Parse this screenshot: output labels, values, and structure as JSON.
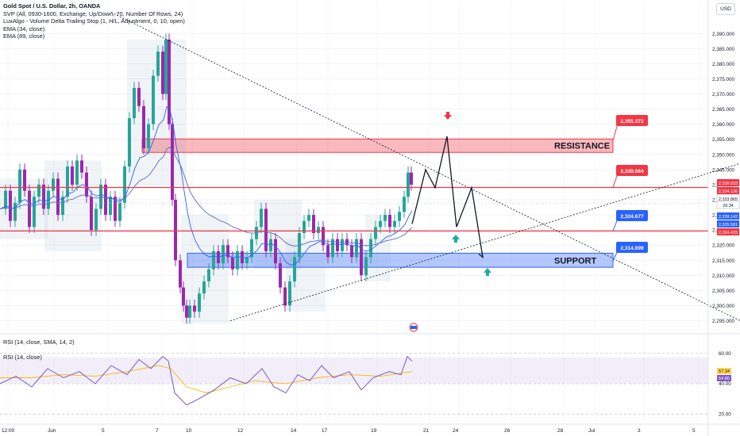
{
  "header": {
    "title": "Gold Spot / U.S. Dollar, 2h, OANDA",
    "indicators": [
      "SVP (All, 0930-1600, Exchange, Up/Down, 70, Number Of Rows, 24)",
      "LuxAlgo - Volume Delta Trailing Stop (1, H/L, Adjustment, 0, 10, open)",
      "EMA (34, close)",
      "EMA (89, close)"
    ],
    "currency": "USD"
  },
  "rsi_panel": {
    "legend_1": "RSI (14, close, SMA, 14, 2)",
    "legend_2": "RSI (14, close)",
    "axis_labels": [
      "60.00",
      "40.00",
      "20.00"
    ],
    "value_1": "57.34",
    "value_2": "54.86"
  },
  "annotations": {
    "resistance_label": "RESISTANCE",
    "support_label": "SUPPORT",
    "price_callouts": [
      "2,355.372",
      "2,339.064",
      "2,324.677",
      "2,314.699"
    ]
  },
  "price_axis_tags": [
    {
      "text": "2,338.933",
      "color": "#f23645"
    },
    {
      "text": "2,334.136",
      "color": "#f23645"
    },
    {
      "text": "2,333.865",
      "color": "#ffffff"
    },
    {
      "text": "26:34",
      "color": "#ffffff"
    },
    {
      "text": "2,328.142",
      "color": "#2962ff"
    },
    {
      "text": "2,325.581",
      "color": "#2962ff"
    },
    {
      "text": "2,324.415",
      "color": "#f23645"
    }
  ],
  "colors": {
    "resistance": "#f23645",
    "support": "#2962ff",
    "up_candle": "#26a69a",
    "down_candle": "#9c27b0",
    "ema_34": "#2962ff",
    "rsi_line": "#7e57c2",
    "rsi_ma": "#ffb300"
  },
  "chart_data": {
    "type": "candlestick",
    "symbol": "Gold Spot / U.S. Dollar",
    "interval": "2h",
    "y_ticks": [
      2390,
      2385,
      2380,
      2375,
      2370,
      2365,
      2360,
      2355,
      2350,
      2345,
      2340,
      2335,
      2330,
      2325,
      2320,
      2315,
      2310,
      2305,
      2300,
      2295
    ],
    "y_tick_labels": [
      "2,390.000",
      "2,385.000",
      "2,380.000",
      "2,375.000",
      "2,370.000",
      "2,365.000",
      "2,360.000",
      "2,355.000",
      "2,350.000",
      "2,345.000",
      "2,340.000",
      "2,335.000",
      "2,330.000",
      "2,325.000",
      "2,320.000",
      "2,315.000",
      "2,310.000",
      "2,305.000",
      "2,300.000",
      "2,295.000"
    ],
    "ylim": [
      2292,
      2394
    ],
    "x_tick_labels": [
      "12:00",
      "Jun",
      "5",
      "7",
      "10",
      "12",
      "14",
      "17",
      "19",
      "21",
      "24",
      "26",
      "28",
      "Jul",
      "3",
      "5"
    ],
    "price_path": [
      [
        0,
        2332
      ],
      [
        8,
        2338
      ],
      [
        14,
        2328
      ],
      [
        20,
        2334
      ],
      [
        26,
        2345
      ],
      [
        32,
        2338
      ],
      [
        38,
        2326
      ],
      [
        44,
        2336
      ],
      [
        50,
        2340
      ],
      [
        56,
        2332
      ],
      [
        62,
        2338
      ],
      [
        68,
        2342
      ],
      [
        74,
        2330
      ],
      [
        80,
        2336
      ],
      [
        86,
        2346
      ],
      [
        92,
        2340
      ],
      [
        98,
        2348
      ],
      [
        104,
        2344
      ],
      [
        110,
        2336
      ],
      [
        116,
        2325
      ],
      [
        122,
        2332
      ],
      [
        128,
        2340
      ],
      [
        134,
        2330
      ],
      [
        140,
        2336
      ],
      [
        146,
        2328
      ],
      [
        152,
        2334
      ],
      [
        158,
        2346
      ],
      [
        164,
        2362
      ],
      [
        170,
        2372
      ],
      [
        176,
        2366
      ],
      [
        182,
        2352
      ],
      [
        188,
        2360
      ],
      [
        194,
        2376
      ],
      [
        200,
        2384
      ],
      [
        206,
        2370
      ],
      [
        210,
        2388
      ],
      [
        214,
        2360
      ],
      [
        218,
        2335
      ],
      [
        222,
        2315
      ],
      [
        228,
        2306
      ],
      [
        232,
        2300
      ],
      [
        236,
        2296
      ],
      [
        240,
        2300
      ],
      [
        246,
        2298
      ],
      [
        252,
        2304
      ],
      [
        258,
        2308
      ],
      [
        264,
        2312
      ],
      [
        270,
        2318
      ],
      [
        276,
        2314
      ],
      [
        282,
        2320
      ],
      [
        288,
        2316
      ],
      [
        294,
        2312
      ],
      [
        300,
        2318
      ],
      [
        306,
        2314
      ],
      [
        312,
        2316
      ],
      [
        318,
        2322
      ],
      [
        324,
        2326
      ],
      [
        330,
        2332
      ],
      [
        336,
        2318
      ],
      [
        342,
        2322
      ],
      [
        348,
        2314
      ],
      [
        354,
        2306
      ],
      [
        360,
        2300
      ],
      [
        366,
        2308
      ],
      [
        372,
        2316
      ],
      [
        378,
        2324
      ],
      [
        384,
        2328
      ],
      [
        390,
        2330
      ],
      [
        396,
        2324
      ],
      [
        402,
        2326
      ],
      [
        408,
        2320
      ],
      [
        414,
        2316
      ],
      [
        420,
        2322
      ],
      [
        426,
        2318
      ],
      [
        432,
        2322
      ],
      [
        438,
        2320
      ],
      [
        444,
        2316
      ],
      [
        450,
        2322
      ],
      [
        456,
        2310
      ],
      [
        462,
        2316
      ],
      [
        468,
        2322
      ],
      [
        474,
        2326
      ],
      [
        480,
        2328
      ],
      [
        486,
        2330
      ],
      [
        492,
        2326
      ],
      [
        498,
        2328
      ],
      [
        504,
        2331
      ],
      [
        510,
        2336
      ],
      [
        515,
        2344
      ],
      [
        519,
        2340
      ]
    ],
    "projection_path": [
      [
        519,
        2327
      ],
      [
        536,
        2345
      ],
      [
        548,
        2339
      ],
      [
        563,
        2356
      ],
      [
        575,
        2326
      ],
      [
        594,
        2339
      ],
      [
        608,
        2316
      ]
    ],
    "resistance_zone": [
      2351.2,
      2354.6
    ],
    "support_zone": [
      2313.2,
      2316.8
    ],
    "resistance_price": 2355.372,
    "level_1": 2339.064,
    "level_2": 2324.677,
    "support_price": 2314.699,
    "descending_trendline": [
      [
        140,
        2397
      ],
      [
        932,
        2295
      ]
    ],
    "ascending_trendline": [
      [
        290,
        2295
      ],
      [
        932,
        2347
      ]
    ],
    "rsi": {
      "ylim": [
        15,
        62
      ],
      "levels": [
        60,
        40,
        20
      ],
      "upper_band": 57.34,
      "lower_band": 40,
      "rsi_path": [
        [
          0,
          40
        ],
        [
          20,
          45
        ],
        [
          40,
          38
        ],
        [
          60,
          50
        ],
        [
          80,
          44
        ],
        [
          100,
          48
        ],
        [
          120,
          40
        ],
        [
          140,
          52
        ],
        [
          160,
          46
        ],
        [
          175,
          56
        ],
        [
          190,
          50
        ],
        [
          205,
          58
        ],
        [
          212,
          55
        ],
        [
          220,
          34
        ],
        [
          235,
          26
        ],
        [
          250,
          30
        ],
        [
          270,
          36
        ],
        [
          290,
          44
        ],
        [
          310,
          40
        ],
        [
          330,
          50
        ],
        [
          345,
          38
        ],
        [
          360,
          34
        ],
        [
          375,
          46
        ],
        [
          390,
          42
        ],
        [
          405,
          52
        ],
        [
          420,
          44
        ],
        [
          440,
          48
        ],
        [
          455,
          36
        ],
        [
          470,
          44
        ],
        [
          490,
          48
        ],
        [
          505,
          46
        ],
        [
          513,
          58
        ],
        [
          519,
          54.86
        ]
      ],
      "ma_path": [
        [
          0,
          44
        ],
        [
          40,
          44
        ],
        [
          80,
          46
        ],
        [
          120,
          45
        ],
        [
          160,
          48
        ],
        [
          200,
          52
        ],
        [
          215,
          50
        ],
        [
          235,
          38
        ],
        [
          260,
          34
        ],
        [
          290,
          38
        ],
        [
          320,
          42
        ],
        [
          360,
          40
        ],
        [
          400,
          44
        ],
        [
          440,
          46
        ],
        [
          480,
          45
        ],
        [
          519,
          48
        ]
      ]
    }
  }
}
